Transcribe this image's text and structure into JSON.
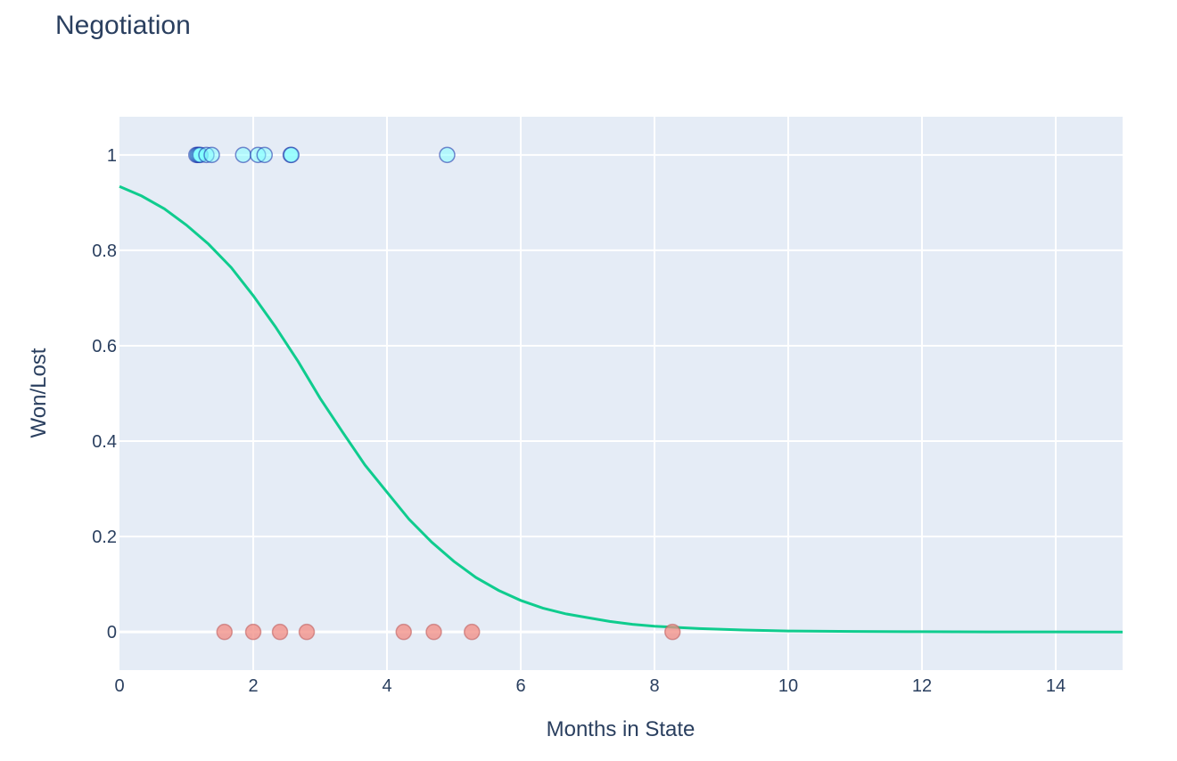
{
  "chart_data": {
    "type": "scatter",
    "title": "Negotiation",
    "xlabel": "Months in State",
    "ylabel": "Won/Lost",
    "xlim": [
      0,
      15
    ],
    "ylim": [
      -0.08,
      1.08
    ],
    "x_ticks": [
      0,
      2,
      4,
      6,
      8,
      10,
      12,
      14
    ],
    "y_ticks": [
      0,
      0.2,
      0.4,
      0.6,
      0.8,
      1
    ],
    "y_tick_labels": [
      "0",
      "0.2",
      "0.4",
      "0.6",
      "0.8",
      "1"
    ],
    "grid": true,
    "legend": "none",
    "colors": {
      "plot_bg": "#e5ecf6",
      "grid": "#ffffff",
      "won_fill": "#7fffff",
      "won_stroke": "#1a2ea8",
      "lost_fill": "#f28b82",
      "lost_stroke": "#c06060",
      "curve": "#0fcc8e"
    },
    "series": [
      {
        "type": "scatter",
        "points": [
          {
            "x": 1.15,
            "y": 1
          },
          {
            "x": 1.17,
            "y": 1
          },
          {
            "x": 1.19,
            "y": 1
          },
          {
            "x": 1.21,
            "y": 1
          },
          {
            "x": 1.3,
            "y": 1
          },
          {
            "x": 1.38,
            "y": 1
          },
          {
            "x": 1.85,
            "y": 1
          },
          {
            "x": 2.07,
            "y": 1
          },
          {
            "x": 2.17,
            "y": 1
          },
          {
            "x": 2.56,
            "y": 1
          },
          {
            "x": 2.57,
            "y": 1
          },
          {
            "x": 4.9,
            "y": 1
          }
        ]
      },
      {
        "type": "scatter",
        "points": [
          {
            "x": 1.57,
            "y": 0
          },
          {
            "x": 2.0,
            "y": 0
          },
          {
            "x": 2.4,
            "y": 0
          },
          {
            "x": 2.8,
            "y": 0
          },
          {
            "x": 4.25,
            "y": 0
          },
          {
            "x": 4.7,
            "y": 0
          },
          {
            "x": 5.27,
            "y": 0
          },
          {
            "x": 8.27,
            "y": 0
          }
        ]
      },
      {
        "type": "line",
        "points": [
          {
            "x": 0,
            "y": 0.934
          },
          {
            "x": 0.33,
            "y": 0.914
          },
          {
            "x": 0.67,
            "y": 0.887
          },
          {
            "x": 1.0,
            "y": 0.853
          },
          {
            "x": 1.33,
            "y": 0.813
          },
          {
            "x": 1.67,
            "y": 0.764
          },
          {
            "x": 2.0,
            "y": 0.705
          },
          {
            "x": 2.33,
            "y": 0.64
          },
          {
            "x": 2.67,
            "y": 0.567
          },
          {
            "x": 3.0,
            "y": 0.49
          },
          {
            "x": 3.33,
            "y": 0.42
          },
          {
            "x": 3.67,
            "y": 0.35
          },
          {
            "x": 4.0,
            "y": 0.293
          },
          {
            "x": 4.33,
            "y": 0.236
          },
          {
            "x": 4.67,
            "y": 0.188
          },
          {
            "x": 5.0,
            "y": 0.148
          },
          {
            "x": 5.33,
            "y": 0.114
          },
          {
            "x": 5.67,
            "y": 0.087
          },
          {
            "x": 6.0,
            "y": 0.066
          },
          {
            "x": 6.33,
            "y": 0.05
          },
          {
            "x": 6.67,
            "y": 0.038
          },
          {
            "x": 7.0,
            "y": 0.03
          },
          {
            "x": 7.33,
            "y": 0.022
          },
          {
            "x": 7.67,
            "y": 0.016
          },
          {
            "x": 8.0,
            "y": 0.012
          },
          {
            "x": 8.67,
            "y": 0.007
          },
          {
            "x": 9.33,
            "y": 0.004
          },
          {
            "x": 10.0,
            "y": 0.002
          },
          {
            "x": 11.0,
            "y": 0.001
          },
          {
            "x": 12.0,
            "y": 0.0005
          },
          {
            "x": 13.0,
            "y": 0.0002
          },
          {
            "x": 14.0,
            "y": 0.0001
          },
          {
            "x": 15.0,
            "y": 0.0
          }
        ]
      }
    ]
  }
}
